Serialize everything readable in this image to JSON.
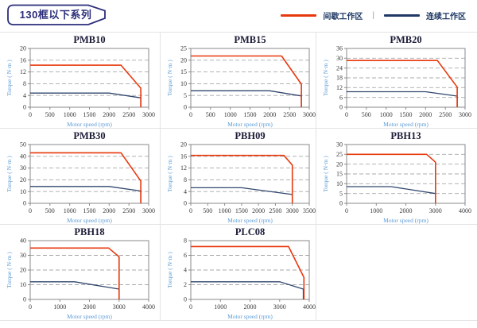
{
  "header": {
    "title": "130框以下系列"
  },
  "legend": {
    "separator": "|",
    "items": [
      {
        "label": "间歇工作区",
        "color": "#e8380d"
      },
      {
        "label": "连续工作区",
        "color": "#1f3864"
      }
    ]
  },
  "colors": {
    "intermittent": "#e8380d",
    "continuous": "#31476e",
    "axis_label_blue": "#5b9bd5",
    "plot_border": "#8a8a8a",
    "grid_line": "#a8a8a8",
    "cell_border": "#e3e3e3",
    "badge_navy": "#2b2d7a"
  },
  "chart_data": [
    {
      "type": "line",
      "title": "PMB10",
      "xlabel": "Motor speed (rpm)",
      "ylabel": "Torque ( N·m )",
      "xlim": [
        0,
        3000
      ],
      "ylim": [
        0,
        20
      ],
      "xticks": [
        0,
        500,
        1000,
        1500,
        2000,
        2500,
        3000
      ],
      "yticks": [
        0,
        4,
        8,
        12,
        16,
        20
      ],
      "series": [
        {
          "name": "间歇工作区",
          "color": "intermittent",
          "points": [
            [
              0,
              14.3
            ],
            [
              2300,
              14.3
            ],
            [
              2800,
              6.5
            ],
            [
              2800,
              0
            ]
          ]
        },
        {
          "name": "连续工作区",
          "color": "continuous",
          "points": [
            [
              0,
              4.8
            ],
            [
              2000,
              4.8
            ],
            [
              2800,
              3.2
            ],
            [
              2800,
              0
            ]
          ]
        }
      ]
    },
    {
      "type": "line",
      "title": "PMB15",
      "xlabel": "Motor speed (rpm)",
      "ylabel": "Torque ( N·m )",
      "xlim": [
        0,
        3000
      ],
      "ylim": [
        0,
        25
      ],
      "xticks": [
        0,
        500,
        1000,
        1500,
        2000,
        2500,
        3000
      ],
      "yticks": [
        0,
        5,
        10,
        15,
        20,
        25
      ],
      "series": [
        {
          "name": "间歇工作区",
          "color": "intermittent",
          "points": [
            [
              0,
              21.8
            ],
            [
              2300,
              21.8
            ],
            [
              2800,
              9.8
            ],
            [
              2800,
              0
            ]
          ]
        },
        {
          "name": "连续工作区",
          "color": "continuous",
          "points": [
            [
              0,
              7
            ],
            [
              2000,
              7
            ],
            [
              2800,
              4.8
            ],
            [
              2800,
              0
            ]
          ]
        }
      ]
    },
    {
      "type": "line",
      "title": "PMB20",
      "xlabel": "Motor speed (rpm)",
      "ylabel": "Torque ( N·m )",
      "xlim": [
        0,
        3000
      ],
      "ylim": [
        0,
        36
      ],
      "xticks": [
        0,
        500,
        1000,
        1500,
        2000,
        2500,
        3000
      ],
      "yticks": [
        0,
        6,
        12,
        18,
        24,
        30,
        36
      ],
      "series": [
        {
          "name": "间歇工作区",
          "color": "intermittent",
          "points": [
            [
              0,
              28.6
            ],
            [
              2300,
              28.6
            ],
            [
              2800,
              12.3
            ],
            [
              2800,
              0
            ]
          ]
        },
        {
          "name": "连续工作区",
          "color": "continuous",
          "points": [
            [
              0,
              9.5
            ],
            [
              2000,
              9.5
            ],
            [
              2800,
              6.8
            ],
            [
              2800,
              0
            ]
          ]
        }
      ]
    },
    {
      "type": "line",
      "title": "PMB30",
      "xlabel": "Motor speed (rpm)",
      "ylabel": "Torque ( N·m )",
      "xlim": [
        0,
        3000
      ],
      "ylim": [
        0,
        50
      ],
      "xticks": [
        0,
        500,
        1000,
        1500,
        2000,
        2500,
        3000
      ],
      "yticks": [
        0,
        10,
        20,
        30,
        40,
        50
      ],
      "series": [
        {
          "name": "间歇工作区",
          "color": "intermittent",
          "points": [
            [
              0,
              43
            ],
            [
              2300,
              43
            ],
            [
              2800,
              19
            ],
            [
              2800,
              0
            ]
          ]
        },
        {
          "name": "连续工作区",
          "color": "continuous",
          "points": [
            [
              0,
              14.3
            ],
            [
              2000,
              14.3
            ],
            [
              2800,
              10.5
            ],
            [
              2800,
              0
            ]
          ]
        }
      ]
    },
    {
      "type": "line",
      "title": "PBH09",
      "xlabel": "Motor speed (rpm)",
      "ylabel": "Torque ( N·m )",
      "xlim": [
        0,
        3500
      ],
      "ylim": [
        0,
        20
      ],
      "xticks": [
        0,
        500,
        1000,
        1500,
        2000,
        2500,
        3000,
        3500
      ],
      "yticks": [
        0,
        4,
        8,
        12,
        16,
        20
      ],
      "series": [
        {
          "name": "间歇工作区",
          "color": "intermittent",
          "points": [
            [
              0,
              16.3
            ],
            [
              2750,
              16.3
            ],
            [
              3000,
              13
            ],
            [
              3000,
              0
            ]
          ]
        },
        {
          "name": "连续工作区",
          "color": "continuous",
          "points": [
            [
              0,
              5.3
            ],
            [
              1500,
              5.3
            ],
            [
              3000,
              3
            ],
            [
              3000,
              0
            ]
          ]
        }
      ]
    },
    {
      "type": "line",
      "title": "PBH13",
      "xlabel": "Motor speed (rpm)",
      "ylabel": "Torque ( N·m )",
      "xlim": [
        0,
        4000
      ],
      "ylim": [
        0,
        30
      ],
      "xticks": [
        0,
        1000,
        2000,
        3000,
        4000
      ],
      "yticks": [
        0,
        5,
        10,
        15,
        20,
        25,
        30
      ],
      "series": [
        {
          "name": "间歇工作区",
          "color": "intermittent",
          "points": [
            [
              0,
              25
            ],
            [
              2700,
              25
            ],
            [
              3000,
              21
            ],
            [
              3000,
              0
            ]
          ]
        },
        {
          "name": "连续工作区",
          "color": "continuous",
          "points": [
            [
              0,
              8.5
            ],
            [
              1500,
              8.5
            ],
            [
              3000,
              5
            ],
            [
              3000,
              0
            ]
          ]
        }
      ]
    },
    {
      "type": "line",
      "title": "PBH18",
      "xlabel": "Motor speed (rpm)",
      "ylabel": "Torque ( N·m )",
      "xlim": [
        0,
        4000
      ],
      "ylim": [
        0,
        40
      ],
      "xticks": [
        0,
        1000,
        2000,
        3000,
        4000
      ],
      "yticks": [
        0,
        10,
        20,
        30,
        40
      ],
      "series": [
        {
          "name": "间歇工作区",
          "color": "intermittent",
          "points": [
            [
              0,
              35
            ],
            [
              2650,
              35
            ],
            [
              3000,
              29
            ],
            [
              3000,
              0
            ]
          ]
        },
        {
          "name": "连续工作区",
          "color": "continuous",
          "points": [
            [
              0,
              12
            ],
            [
              1500,
              12
            ],
            [
              3000,
              7
            ],
            [
              3000,
              0
            ]
          ]
        }
      ]
    },
    {
      "type": "line",
      "title": "PLC08",
      "xlabel": "Motor speed (rpm)",
      "ylabel": "Torque ( N·m )",
      "xlim": [
        0,
        4000
      ],
      "ylim": [
        0,
        8
      ],
      "xticks": [
        0,
        1000,
        2000,
        3000,
        4000
      ],
      "yticks": [
        0,
        2,
        4,
        6,
        8
      ],
      "series": [
        {
          "name": "间歇工作区",
          "color": "intermittent",
          "points": [
            [
              0,
              7.2
            ],
            [
              3300,
              7.2
            ],
            [
              3820,
              3
            ],
            [
              3820,
              0
            ]
          ]
        },
        {
          "name": "连续工作区",
          "color": "continuous",
          "points": [
            [
              0,
              2.4
            ],
            [
              3000,
              2.4
            ],
            [
              3800,
              1.4
            ],
            [
              3800,
              0
            ]
          ]
        }
      ]
    }
  ]
}
